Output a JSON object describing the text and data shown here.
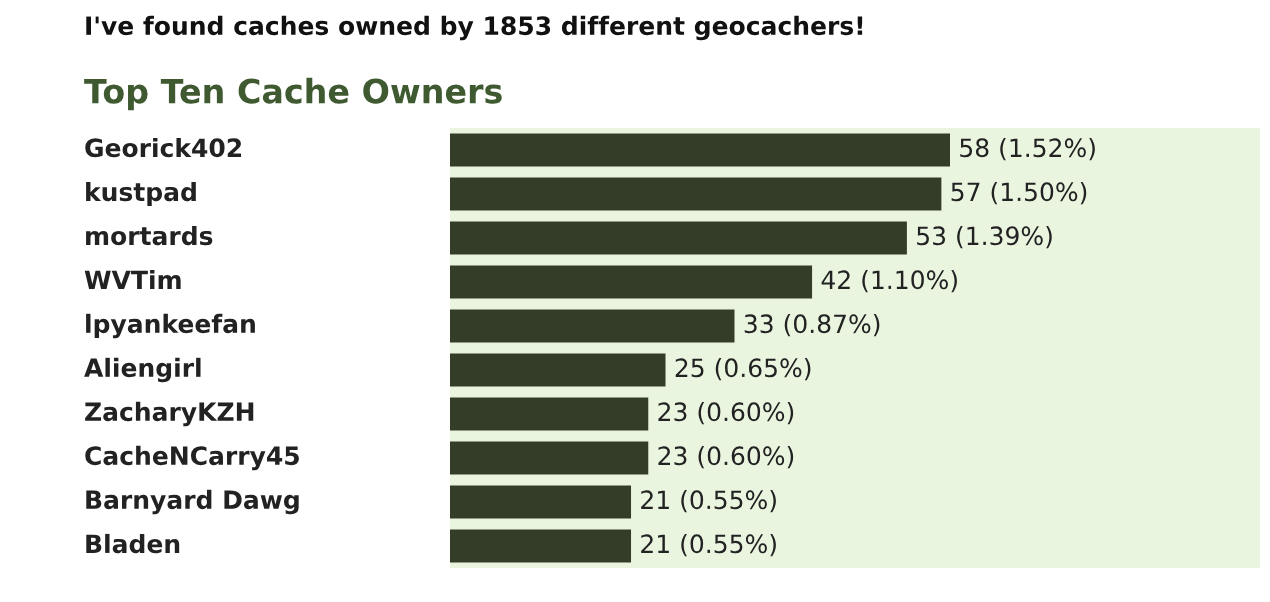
{
  "chart_data": {
    "type": "bar",
    "orientation": "horizontal",
    "title": "I've found caches owned by 1853 different geocachers!",
    "subtitle": "Top Ten Cache Owners",
    "categories": [
      "Georick402",
      "kustpad",
      "mortards",
      "WVTim",
      "lpyankeefan",
      "Aliengirl",
      "ZacharyKZH",
      "CacheNCarry45",
      "Barnyard Dawg",
      "Bladen"
    ],
    "values": [
      58,
      57,
      53,
      42,
      33,
      25,
      23,
      23,
      21,
      21
    ],
    "value_labels": [
      "58 (1.52%)",
      "57 (1.50%)",
      "53 (1.39%)",
      "42 (1.10%)",
      "33 (0.87%)",
      "25 (0.65%)",
      "23 (0.60%)",
      "23 (0.60%)",
      "21 (0.55%)",
      "21 (0.55%)"
    ],
    "color": "#333d28"
  }
}
